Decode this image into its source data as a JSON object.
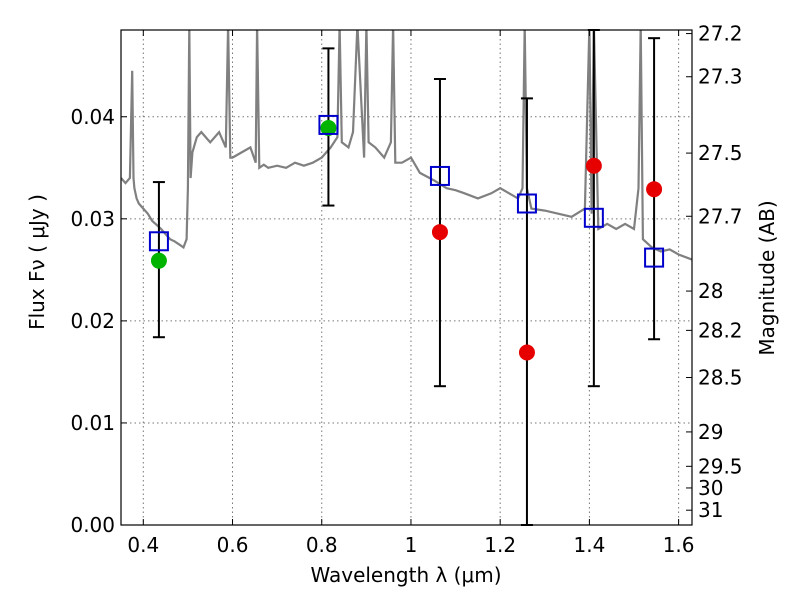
{
  "chart_data": {
    "type": "scatter",
    "title": "",
    "xlabel": "Wavelength  λ (μm)",
    "ylabel": "Flux  Fν ( μJy )",
    "ylabel_right": "Magnitude (AB)",
    "xlim": [
      0.35,
      1.63
    ],
    "ylim": [
      0.0,
      0.0485
    ],
    "grid": true,
    "x_ticks": [
      {
        "value": 0.4,
        "label": "0.4"
      },
      {
        "value": 0.6,
        "label": "0.6"
      },
      {
        "value": 0.8,
        "label": "0.8"
      },
      {
        "value": 1.0,
        "label": "1"
      },
      {
        "value": 1.2,
        "label": "1.2"
      },
      {
        "value": 1.4,
        "label": "1.4"
      },
      {
        "value": 1.6,
        "label": "1.6"
      }
    ],
    "y_ticks": [
      {
        "value": 0.0,
        "label": "0.00"
      },
      {
        "value": 0.01,
        "label": "0.01"
      },
      {
        "value": 0.02,
        "label": "0.02"
      },
      {
        "value": 0.03,
        "label": "0.03"
      },
      {
        "value": 0.04,
        "label": "0.04"
      }
    ],
    "y2_ticks": [
      {
        "flux": 0.04815,
        "label": "27.2"
      },
      {
        "flux": 0.04392,
        "label": "27.3"
      },
      {
        "flux": 0.03644,
        "label": "27.5"
      },
      {
        "flux": 0.03025,
        "label": "27.7"
      },
      {
        "flux": 0.02292,
        "label": "28"
      },
      {
        "flux": 0.01907,
        "label": "28.2"
      },
      {
        "flux": 0.01445,
        "label": "28.5"
      },
      {
        "flux": 0.00912,
        "label": "29"
      },
      {
        "flux": 0.00575,
        "label": "29.5"
      },
      {
        "flux": 0.00363,
        "label": "30"
      },
      {
        "flux": 0.00145,
        "label": "31"
      }
    ],
    "colors": {
      "spectrum": "#808080",
      "model": "#0000cc",
      "detection": "#00b400",
      "measurement": "#e60000",
      "errorbar": "#000000",
      "grid": "#777777"
    },
    "spectrum": {
      "x": [
        0.35,
        0.36,
        0.37,
        0.375,
        0.378,
        0.38,
        0.385,
        0.39,
        0.4,
        0.41,
        0.42,
        0.43,
        0.44,
        0.45,
        0.46,
        0.47,
        0.48,
        0.49,
        0.497,
        0.5,
        0.503,
        0.506,
        0.51,
        0.52,
        0.53,
        0.55,
        0.57,
        0.585,
        0.59,
        0.595,
        0.6,
        0.62,
        0.64,
        0.652,
        0.655,
        0.66,
        0.67,
        0.68,
        0.7,
        0.72,
        0.74,
        0.76,
        0.78,
        0.8,
        0.82,
        0.835,
        0.84,
        0.845,
        0.86,
        0.87,
        0.88,
        0.895,
        0.9,
        0.905,
        0.92,
        0.94,
        0.955,
        0.96,
        0.965,
        0.98,
        1.0,
        1.02,
        1.05,
        1.08,
        1.1,
        1.12,
        1.15,
        1.18,
        1.2,
        1.22,
        1.24,
        1.25,
        1.255,
        1.26,
        1.27,
        1.3,
        1.33,
        1.36,
        1.39,
        1.4,
        1.405,
        1.41,
        1.42,
        1.44,
        1.46,
        1.48,
        1.5,
        1.51,
        1.515,
        1.52,
        1.54,
        1.56,
        1.58,
        1.6,
        1.63
      ],
      "y": [
        0.034,
        0.0335,
        0.034,
        0.0445,
        0.034,
        0.033,
        0.032,
        0.0315,
        0.031,
        0.0305,
        0.0298,
        0.0294,
        0.029,
        0.0285,
        0.028,
        0.0278,
        0.0275,
        0.0272,
        0.028,
        0.033,
        0.049,
        0.034,
        0.0365,
        0.038,
        0.0385,
        0.0375,
        0.0385,
        0.037,
        0.049,
        0.036,
        0.036,
        0.0365,
        0.037,
        0.0355,
        0.049,
        0.035,
        0.0353,
        0.035,
        0.0352,
        0.035,
        0.0355,
        0.0352,
        0.0355,
        0.036,
        0.037,
        0.038,
        0.049,
        0.0375,
        0.037,
        0.0385,
        0.049,
        0.036,
        0.049,
        0.0375,
        0.037,
        0.036,
        0.0375,
        0.049,
        0.0355,
        0.0355,
        0.036,
        0.0345,
        0.0338,
        0.033,
        0.0328,
        0.0325,
        0.032,
        0.0325,
        0.033,
        0.0325,
        0.032,
        0.033,
        0.049,
        0.033,
        0.031,
        0.0308,
        0.0305,
        0.0302,
        0.031,
        0.049,
        0.0305,
        0.049,
        0.029,
        0.0295,
        0.029,
        0.0295,
        0.029,
        0.033,
        0.049,
        0.028,
        0.0272,
        0.0268,
        0.027,
        0.0265,
        0.026
      ]
    },
    "model_points": [
      {
        "x": 0.435,
        "y": 0.0278
      },
      {
        "x": 0.815,
        "y": 0.0392
      },
      {
        "x": 1.065,
        "y": 0.0342
      },
      {
        "x": 1.26,
        "y": 0.0315
      },
      {
        "x": 1.41,
        "y": 0.0301
      },
      {
        "x": 1.545,
        "y": 0.0262
      }
    ],
    "detections": [
      {
        "x": 0.435,
        "y": 0.0259,
        "err_low": 0.0184,
        "err_high": 0.0336
      },
      {
        "x": 0.815,
        "y": 0.0389,
        "err_low": 0.0313,
        "err_high": 0.0467
      }
    ],
    "measurements": [
      {
        "x": 1.065,
        "y": 0.0287,
        "err_low": 0.0136,
        "err_high": 0.0437
      },
      {
        "x": 1.26,
        "y": 0.0169,
        "err_low": 0.0,
        "err_high": 0.0418
      },
      {
        "x": 1.41,
        "y": 0.0352,
        "err_low": 0.0136,
        "err_high": 0.0485
      },
      {
        "x": 1.545,
        "y": 0.0329,
        "err_low": 0.0182,
        "err_high": 0.0477
      }
    ]
  }
}
